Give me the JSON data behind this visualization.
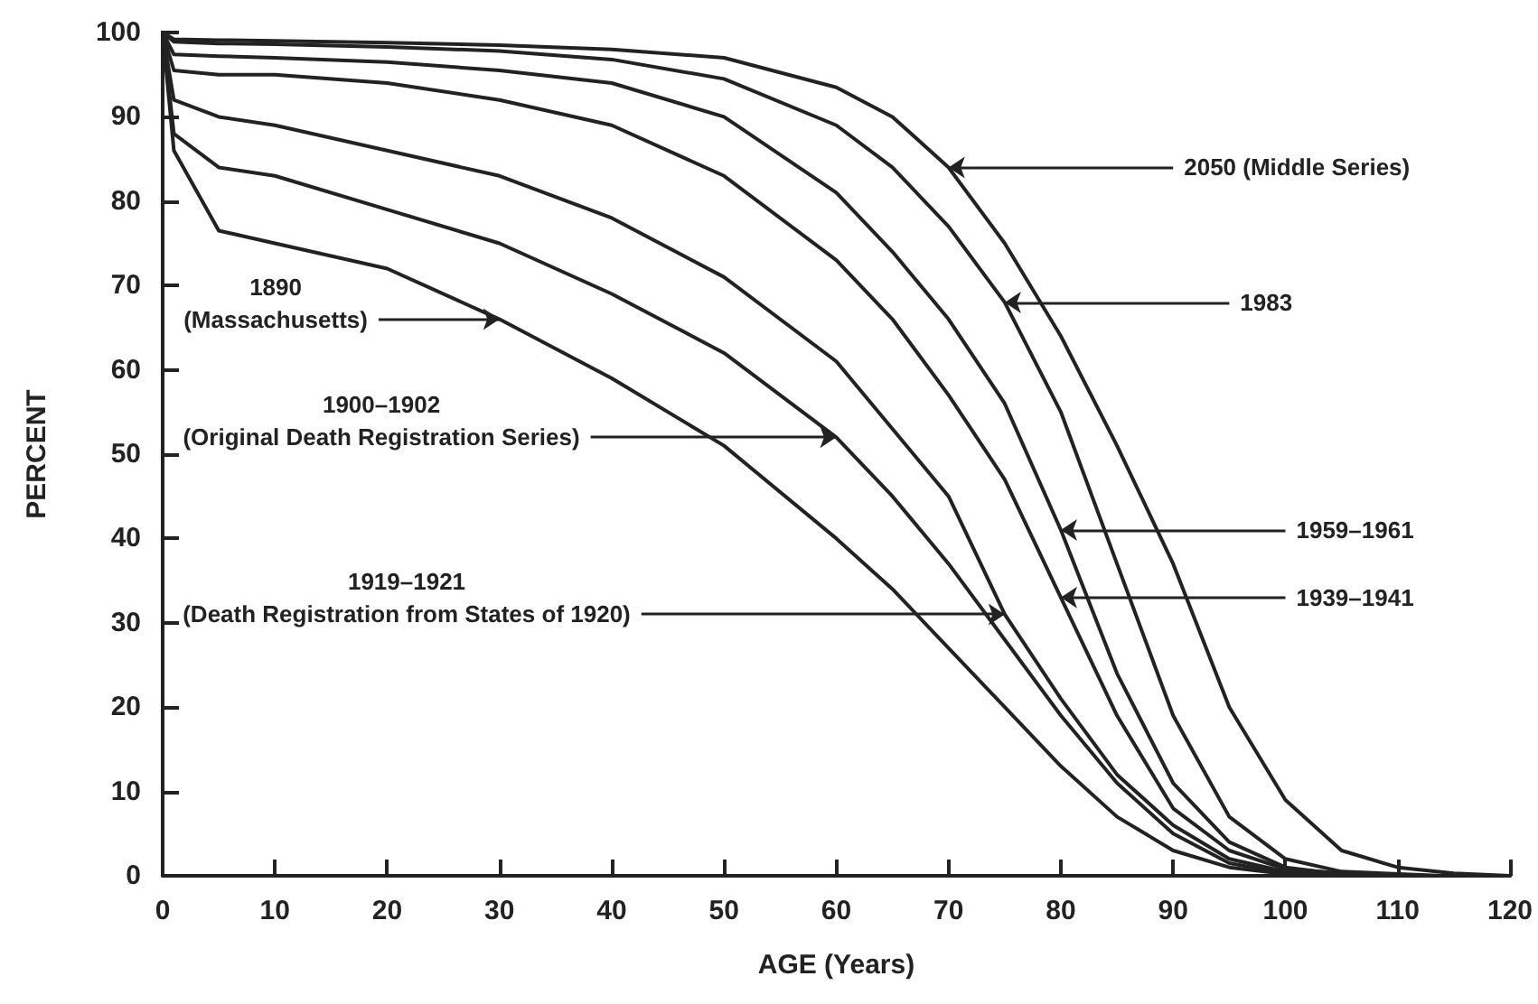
{
  "chart_data": {
    "type": "line",
    "xlabel": "AGE (Years)",
    "ylabel": "PERCENT",
    "series": [
      {
        "color": "#222222",
        "x": [
          0,
          1,
          5,
          10,
          20,
          30,
          40,
          50,
          60,
          65,
          70,
          75,
          80,
          85,
          90,
          95,
          100
        ],
        "values": [
          100,
          86,
          76.5,
          75,
          72,
          66,
          59,
          51,
          40,
          34,
          27,
          20,
          13,
          7,
          3,
          1,
          0.2
        ]
      },
      {
        "color": "#222222",
        "x": [
          0,
          1,
          5,
          10,
          20,
          30,
          40,
          50,
          60,
          65,
          70,
          75,
          80,
          85,
          90,
          95,
          100,
          104
        ],
        "values": [
          100,
          88,
          84,
          83,
          79,
          75,
          69,
          62,
          52,
          45,
          37,
          28,
          19,
          11,
          5,
          1.5,
          0.3,
          0
        ]
      },
      {
        "color": "#222222",
        "x": [
          0,
          1,
          5,
          10,
          20,
          30,
          40,
          50,
          60,
          65,
          70,
          75,
          80,
          85,
          90,
          95,
          100,
          106
        ],
        "values": [
          100,
          92,
          90,
          89,
          86,
          83,
          78,
          71,
          61,
          53,
          45,
          31,
          21,
          12,
          6,
          2,
          0.5,
          0
        ]
      },
      {
        "color": "#222222",
        "x": [
          0,
          1,
          5,
          10,
          20,
          30,
          40,
          50,
          60,
          65,
          70,
          75,
          80,
          85,
          90,
          95,
          100,
          108
        ],
        "values": [
          100,
          95.5,
          95,
          95,
          94,
          92,
          89,
          83,
          73,
          66,
          57,
          47,
          33,
          19,
          8,
          3,
          0.8,
          0
        ]
      },
      {
        "color": "#222222",
        "x": [
          0,
          1,
          5,
          10,
          20,
          30,
          40,
          50,
          60,
          65,
          70,
          75,
          80,
          85,
          90,
          95,
          100,
          105,
          110
        ],
        "values": [
          100,
          97.4,
          97.2,
          97,
          96.5,
          95.5,
          94,
          90,
          81,
          74,
          66,
          56,
          41,
          24,
          11,
          4,
          1,
          0.2,
          0
        ]
      },
      {
        "color": "#222222",
        "x": [
          0,
          1,
          5,
          10,
          20,
          30,
          40,
          50,
          60,
          65,
          70,
          75,
          80,
          85,
          90,
          95,
          100,
          105,
          114
        ],
        "values": [
          100,
          98.9,
          98.7,
          98.6,
          98.3,
          97.8,
          96.8,
          94.5,
          89,
          84,
          77,
          68,
          55,
          37,
          19,
          7,
          2,
          0.5,
          0
        ]
      },
      {
        "color": "#222222",
        "x": [
          0,
          1,
          5,
          10,
          20,
          30,
          40,
          50,
          60,
          65,
          70,
          75,
          80,
          85,
          90,
          95,
          100,
          105,
          110,
          115,
          120
        ],
        "values": [
          100,
          99.2,
          99.1,
          99,
          98.8,
          98.5,
          98,
          97,
          93.5,
          90,
          84,
          75,
          64,
          51,
          37,
          20,
          9,
          3,
          1,
          0.3,
          0
        ]
      }
    ],
    "annotations": [
      {
        "text": "1890\n(Massachusetts)",
        "x": 30,
        "y": 66
      },
      {
        "text": "1900–1902\n(Original Death Registration Series)",
        "x": 60,
        "y": 52
      },
      {
        "text": "1919–1921\n(Death Registration from States of 1920)",
        "x": 75,
        "y": 31
      },
      {
        "text": "1939–1941",
        "x": 80,
        "y": 33
      },
      {
        "text": "1959–1961",
        "x": 80,
        "y": 41
      },
      {
        "text": "1983",
        "x": 75,
        "y": 68
      },
      {
        "text": "2050 (Middle Series)",
        "x": 70,
        "y": 84
      }
    ],
    "xlim": [
      0,
      120
    ],
    "xticks": [
      0,
      10,
      20,
      30,
      40,
      50,
      60,
      70,
      80,
      90,
      100,
      110,
      120
    ],
    "ylim": [
      0,
      100
    ],
    "yticks": [
      0,
      10,
      20,
      30,
      40,
      50,
      60,
      70,
      80,
      90,
      100
    ],
    "grid": false,
    "marker": "none",
    "line_style": "solid"
  }
}
